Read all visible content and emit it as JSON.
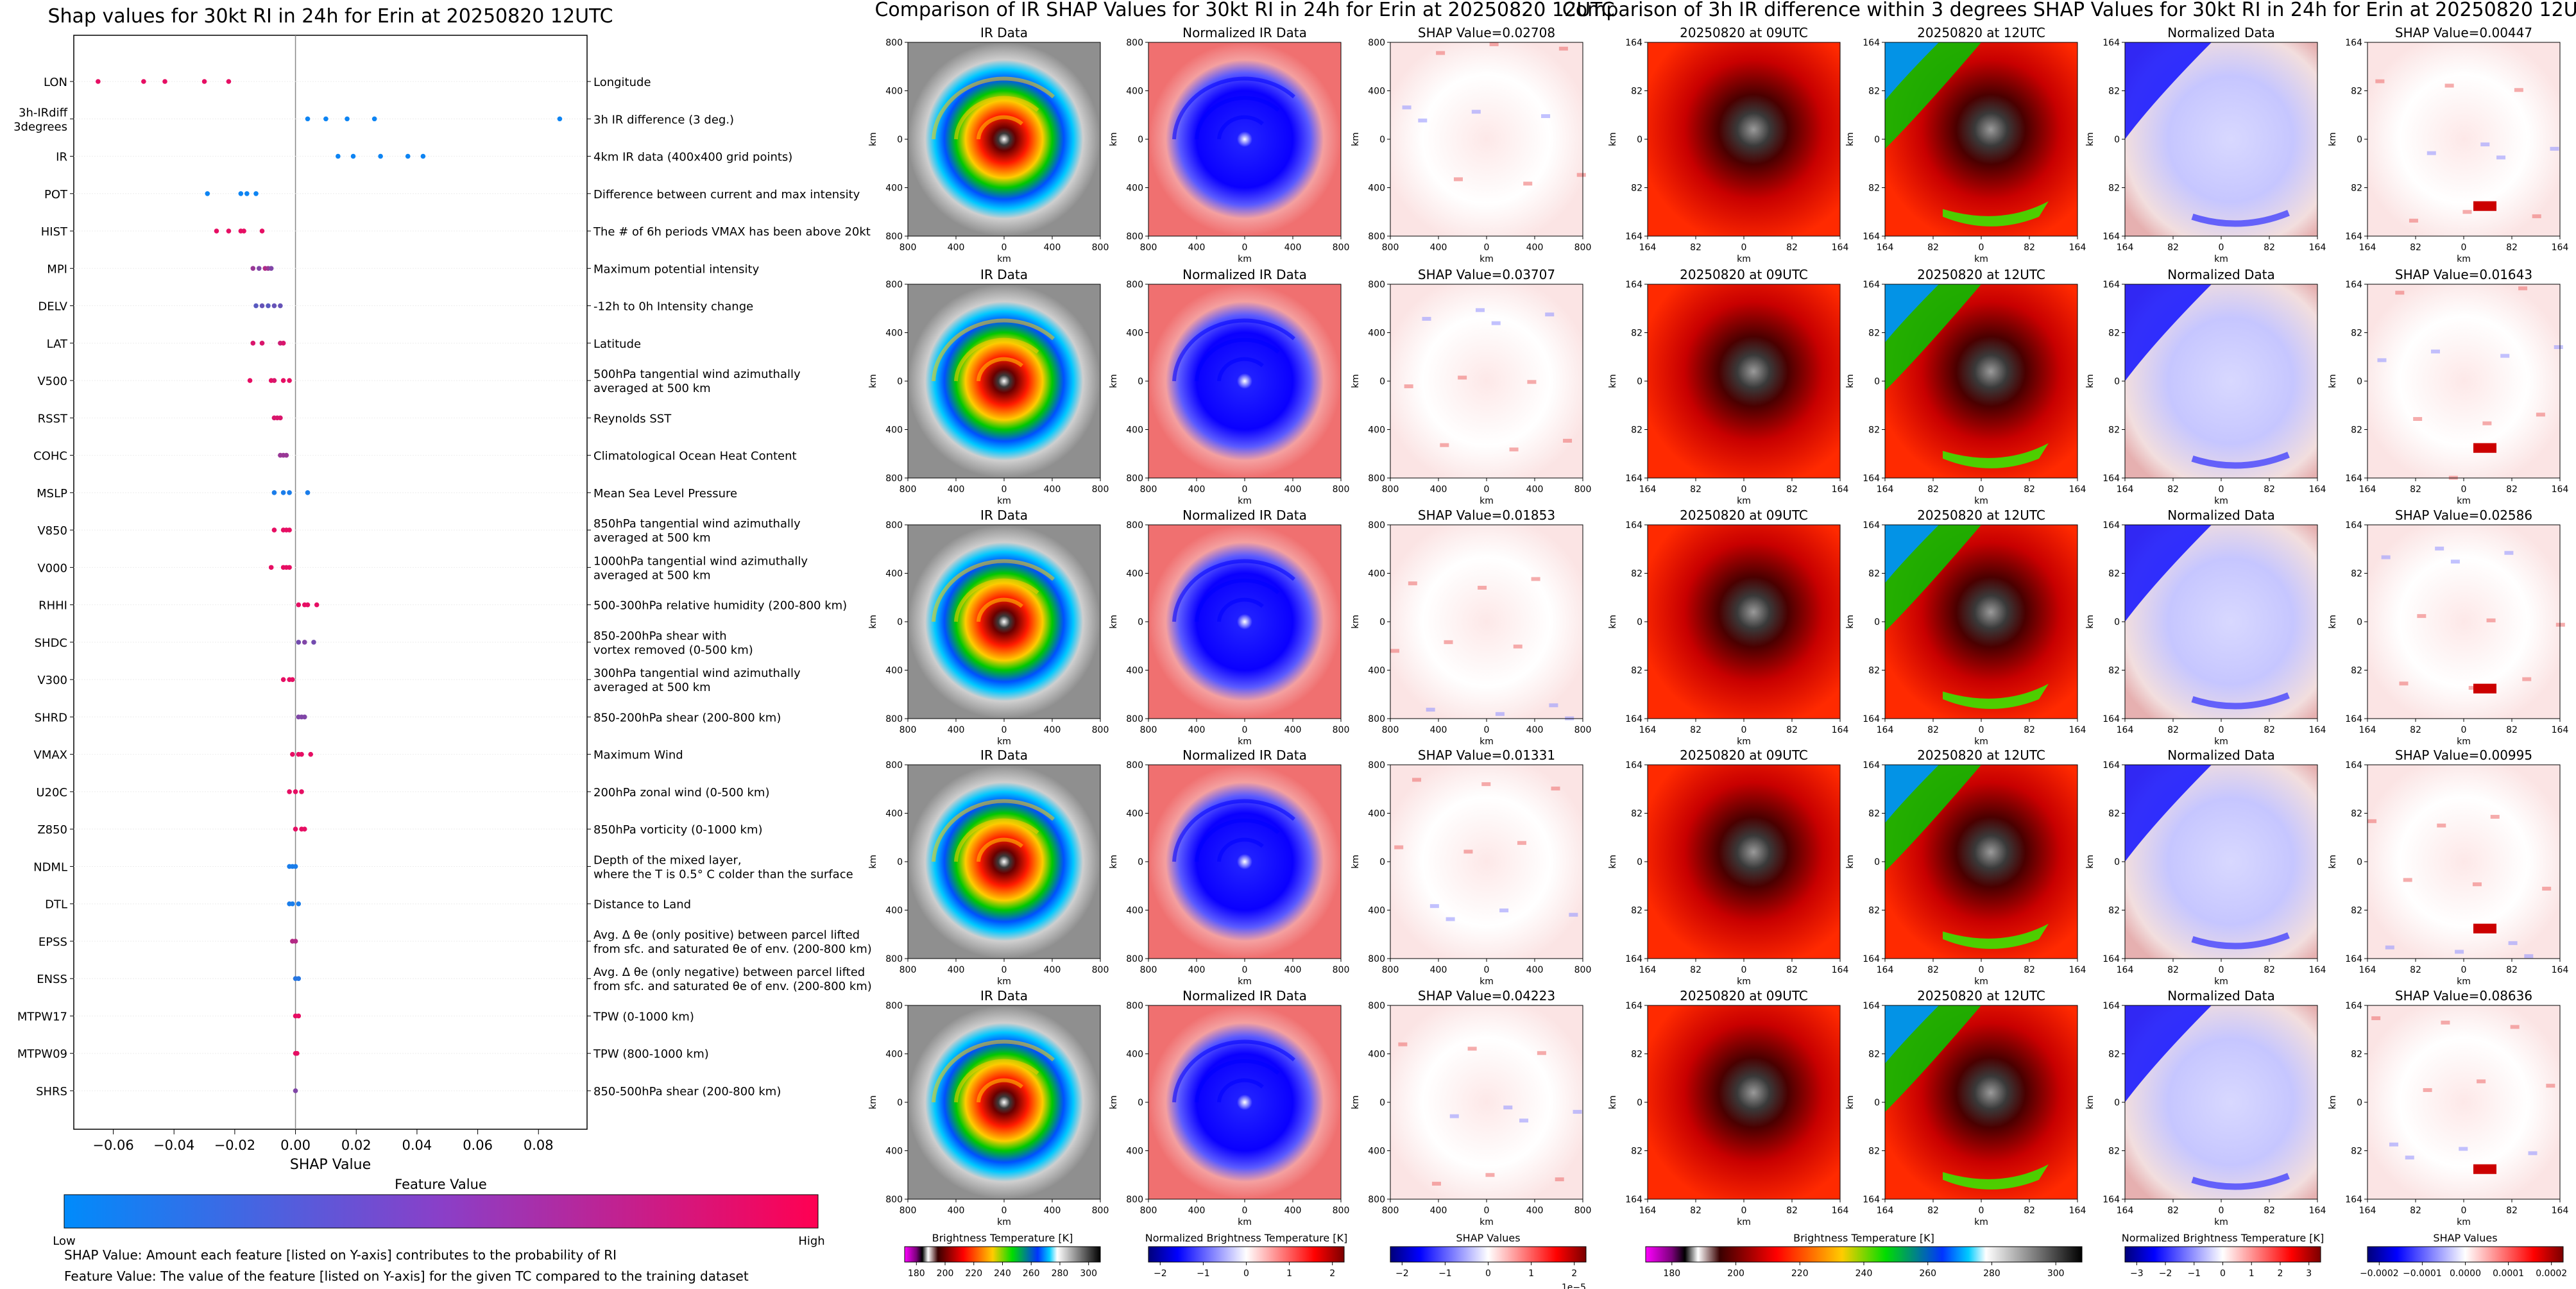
{
  "chart_data": [
    {
      "type": "scatter",
      "title": "Shap values for 30kt RI in 24h for Erin at 20250820 12UTC",
      "xlabel": "SHAP Value",
      "xlim": [
        -0.073,
        0.096
      ],
      "x_ticks": [
        "−0.06",
        "−0.04",
        "−0.02",
        "0.00",
        "0.02",
        "0.04",
        "0.06",
        "0.08"
      ],
      "x_tick_values": [
        -0.06,
        -0.04,
        -0.02,
        0.0,
        0.02,
        0.04,
        0.06,
        0.08
      ],
      "colorbar": {
        "title": "Feature Value",
        "low": "Low",
        "high": "High",
        "colors": [
          "#008bfb",
          "#ff0052"
        ]
      },
      "features": [
        {
          "name": "LON",
          "desc": [
            "Longitude"
          ],
          "values": [
            -0.065,
            -0.05,
            -0.043,
            -0.03,
            -0.022
          ],
          "fv": [
            0.9,
            0.9,
            0.9,
            0.9,
            0.9
          ]
        },
        {
          "name": "3h-IRdiff\n3degrees",
          "desc": [
            "3h IR difference (3 deg.)"
          ],
          "values": [
            0.004,
            0.01,
            0.017,
            0.026,
            0.087
          ],
          "fv": [
            0.05,
            0.05,
            0.05,
            0.05,
            0.05
          ]
        },
        {
          "name": "IR",
          "desc": [
            "4km IR data (400x400 grid points)"
          ],
          "values": [
            0.014,
            0.019,
            0.028,
            0.037,
            0.042
          ],
          "fv": [
            0.05,
            0.05,
            0.05,
            0.05,
            0.05
          ]
        },
        {
          "name": "POT",
          "desc": [
            "Difference between current and max intensity"
          ],
          "values": [
            -0.029,
            -0.018,
            -0.016,
            -0.013
          ],
          "fv": [
            0.05,
            0.05,
            0.05,
            0.05
          ]
        },
        {
          "name": "HIST",
          "desc": [
            "The # of 6h periods VMAX has been above 20kt"
          ],
          "values": [
            -0.026,
            -0.022,
            -0.018,
            -0.017,
            -0.011
          ],
          "fv": [
            0.9,
            0.9,
            0.9,
            0.9,
            0.9
          ]
        },
        {
          "name": "MPI",
          "desc": [
            "Maximum potential intensity"
          ],
          "values": [
            -0.014,
            -0.012,
            -0.01,
            -0.009,
            -0.008
          ],
          "fv": [
            0.6,
            0.5,
            0.7,
            0.6,
            0.5
          ]
        },
        {
          "name": "DELV",
          "desc": [
            "-12h to 0h Intensity change"
          ],
          "values": [
            -0.013,
            -0.011,
            -0.009,
            -0.007,
            -0.005
          ],
          "fv": [
            0.35,
            0.4,
            0.35,
            0.4,
            0.4
          ]
        },
        {
          "name": "LAT",
          "desc": [
            "Latitude"
          ],
          "values": [
            -0.014,
            -0.011,
            -0.005,
            -0.004
          ],
          "fv": [
            0.85,
            0.85,
            0.8,
            0.85
          ]
        },
        {
          "name": "V500",
          "desc": [
            "500hPa tangential wind azimuthally",
            "averaged at 500 km"
          ],
          "values": [
            -0.015,
            -0.008,
            -0.007,
            -0.004,
            -0.002
          ],
          "fv": [
            0.9,
            0.9,
            0.85,
            0.9,
            0.9
          ]
        },
        {
          "name": "RSST",
          "desc": [
            "Reynolds SST"
          ],
          "values": [
            -0.007,
            -0.006,
            -0.005
          ],
          "fv": [
            0.85,
            0.85,
            0.85
          ]
        },
        {
          "name": "COHC",
          "desc": [
            "Climatological Ocean Heat Content"
          ],
          "values": [
            -0.005,
            -0.004,
            -0.003
          ],
          "fv": [
            0.6,
            0.6,
            0.6
          ]
        },
        {
          "name": "MSLP",
          "desc": [
            "Mean Sea Level Pressure"
          ],
          "values": [
            -0.007,
            -0.004,
            -0.002,
            0.004
          ],
          "fv": [
            0.1,
            0.1,
            0.1,
            0.1
          ]
        },
        {
          "name": "V850",
          "desc": [
            "850hPa tangential wind azimuthally",
            "averaged at 500 km"
          ],
          "values": [
            -0.007,
            -0.004,
            -0.003,
            -0.002
          ],
          "fv": [
            0.9,
            0.9,
            0.9,
            0.9
          ]
        },
        {
          "name": "V000",
          "desc": [
            "1000hPa tangential wind azimuthally",
            "averaged at 500 km"
          ],
          "values": [
            -0.008,
            -0.004,
            -0.003,
            -0.002
          ],
          "fv": [
            0.9,
            0.9,
            0.9,
            0.9
          ]
        },
        {
          "name": "RHHI",
          "desc": [
            "500-300hPa relative humidity (200-800 km)"
          ],
          "values": [
            0.001,
            0.003,
            0.004,
            0.007
          ],
          "fv": [
            0.9,
            0.9,
            0.9,
            0.9
          ]
        },
        {
          "name": "SHDC",
          "desc": [
            "850-200hPa shear with",
            "vortex removed (0-500 km)"
          ],
          "values": [
            0.001,
            0.003,
            0.006
          ],
          "fv": [
            0.45,
            0.5,
            0.45
          ]
        },
        {
          "name": "V300",
          "desc": [
            "300hPa tangential wind azimuthally",
            "averaged at 500 km"
          ],
          "values": [
            -0.004,
            -0.002,
            -0.001
          ],
          "fv": [
            0.9,
            0.9,
            0.9
          ]
        },
        {
          "name": "SHRD",
          "desc": [
            "850-200hPa shear (200-800 km)"
          ],
          "values": [
            0.001,
            0.002,
            0.003
          ],
          "fv": [
            0.5,
            0.5,
            0.5
          ]
        },
        {
          "name": "VMAX",
          "desc": [
            "Maximum Wind"
          ],
          "values": [
            -0.001,
            0.001,
            0.002,
            0.005
          ],
          "fv": [
            0.9,
            0.9,
            0.9,
            0.9
          ]
        },
        {
          "name": "U20C",
          "desc": [
            "200hPa zonal wind (0-500 km)"
          ],
          "values": [
            -0.002,
            0.0,
            0.002
          ],
          "fv": [
            0.9,
            0.9,
            0.9
          ]
        },
        {
          "name": "Z850",
          "desc": [
            "850hPa vorticity (0-1000 km)"
          ],
          "values": [
            0.0,
            0.002,
            0.003
          ],
          "fv": [
            0.9,
            0.9,
            0.9
          ]
        },
        {
          "name": "NDML",
          "desc": [
            "Depth of the mixed layer,",
            "where the T is 0.5° C colder than the surface"
          ],
          "values": [
            -0.002,
            -0.001,
            0.0
          ],
          "fv": [
            0.1,
            0.1,
            0.1
          ]
        },
        {
          "name": "DTL",
          "desc": [
            "Distance to Land"
          ],
          "values": [
            -0.002,
            -0.001,
            0.001
          ],
          "fv": [
            0.1,
            0.1,
            0.1
          ]
        },
        {
          "name": "EPSS",
          "desc": [
            "Avg. Δ θe (only positive) between parcel lifted",
            "from sfc. and saturated θe of env. (200-800 km)"
          ],
          "values": [
            -0.001,
            0.0
          ],
          "fv": [
            0.7,
            0.7
          ]
        },
        {
          "name": "ENSS",
          "desc": [
            "Avg. Δ θe (only negative) between parcel lifted",
            "from sfc. and saturated θe of env. (200-800 km)"
          ],
          "values": [
            0.0,
            0.001
          ],
          "fv": [
            0.15,
            0.15
          ]
        },
        {
          "name": "MTPW17",
          "desc": [
            "TPW (0-1000 km)"
          ],
          "values": [
            0.0,
            0.001
          ],
          "fv": [
            0.9,
            0.9
          ]
        },
        {
          "name": "MTPW09",
          "desc": [
            "TPW (800-1000 km)"
          ],
          "values": [
            0.0,
            0.0005
          ],
          "fv": [
            0.9,
            0.9
          ]
        },
        {
          "name": "SHRS",
          "desc": [
            "850-500hPa shear (200-800 km)"
          ],
          "values": [
            0.0
          ],
          "fv": [
            0.5
          ]
        }
      ],
      "notes": [
        "SHAP Value: Amount each feature [listed on Y-axis] contributes to the probability of RI",
        "Feature Value: The value of the feature [listed on Y-axis] for the given TC compared to the training dataset"
      ]
    },
    {
      "type": "heatmap",
      "title": "Comparison of IR SHAP Values for 30kt RI in 24h for Erin at 20250820 12UTC",
      "xlabel": "km",
      "ylabel": "km",
      "x_ticks": [
        "800",
        "400",
        "0",
        "400",
        "800"
      ],
      "y_ticks": [
        "800",
        "400",
        "0",
        "400",
        "800"
      ],
      "column_titles": [
        "IR Data",
        "Normalized IR Data"
      ],
      "shap_titles": [
        "SHAP Value=0.02708",
        "SHAP Value=0.03707",
        "SHAP Value=0.01853",
        "SHAP Value=0.01331",
        "SHAP Value=0.04223"
      ],
      "colorbars": [
        {
          "label": "Brightness Temperature [K]",
          "ticks": [
            "180",
            "200",
            "220",
            "240",
            "260",
            "280",
            "300"
          ]
        },
        {
          "label": "Normalized Brightness Temperature [K]",
          "ticks": [
            "−2",
            "−1",
            "0",
            "1",
            "2"
          ]
        },
        {
          "label": "SHAP Values",
          "ticks": [
            "−2",
            "−1",
            "0",
            "1",
            "2"
          ],
          "scale": "1e−5"
        }
      ]
    },
    {
      "type": "heatmap",
      "title": "Comparison of 3h IR difference within 3 degrees SHAP Values for 30kt RI in 24h for Erin at 20250820 12UTC",
      "xlabel": "km",
      "ylabel": "km",
      "x_ticks": [
        "164",
        "82",
        "0",
        "82",
        "164"
      ],
      "y_ticks": [
        "164",
        "82",
        "0",
        "82",
        "164"
      ],
      "column_titles": [
        "20250820 at 09UTC",
        "20250820 at 12UTC",
        "Normalized Data"
      ],
      "shap_titles": [
        "SHAP Value=0.00447",
        "SHAP Value=0.01643",
        "SHAP Value=0.02586",
        "SHAP Value=0.00995",
        "SHAP Value=0.08636"
      ],
      "colorbars": [
        {
          "label": "Brightness Temperature [K]",
          "ticks": [
            "180",
            "200",
            "220",
            "240",
            "260",
            "280",
            "300"
          ]
        },
        {
          "label": "Normalized Brightness Temperature [K]",
          "ticks": [
            "−3",
            "−2",
            "−1",
            "0",
            "1",
            "2",
            "3"
          ]
        },
        {
          "label": "SHAP Values",
          "ticks": [
            "−0.0002",
            "−0.0001",
            "0.0000",
            "0.0001",
            "0.0002"
          ]
        }
      ]
    }
  ]
}
